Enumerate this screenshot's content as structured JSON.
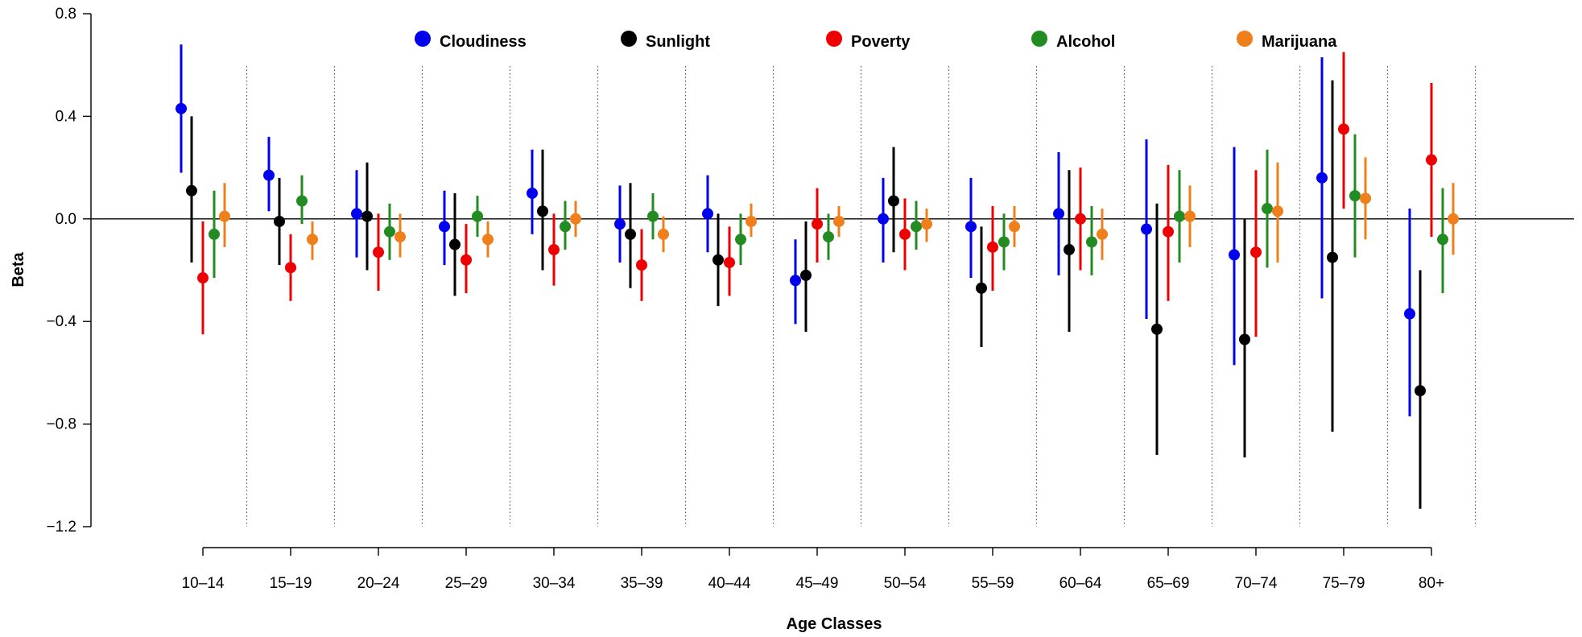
{
  "chart_data": {
    "type": "scatter",
    "subtype": "point-range (coefficient estimate with interval)",
    "title": "",
    "xlabel": "Age Classes",
    "ylabel": "Beta",
    "ylim": [
      -1.2,
      0.8
    ],
    "yticks": [
      "0.8",
      "0.4",
      "0.0",
      "−0.4",
      "−0.8",
      "−1.2"
    ],
    "ytick_values": [
      0.8,
      0.4,
      0.0,
      -0.4,
      -0.8,
      -1.2
    ],
    "reference_line": 0.0,
    "grid": false,
    "separators": "dotted vertical lines between age classes",
    "legend_position": "top",
    "categories": [
      "10–14",
      "15–19",
      "20–24",
      "25–29",
      "30–34",
      "35–39",
      "40–44",
      "45–49",
      "50–54",
      "55–59",
      "60–64",
      "65–69",
      "70–74",
      "75–79",
      "80+"
    ],
    "series": [
      {
        "name": "Cloudiness",
        "color": "#0000ee",
        "values": [
          0.43,
          0.17,
          0.02,
          -0.03,
          0.1,
          -0.02,
          0.02,
          -0.24,
          0.0,
          -0.03,
          0.02,
          -0.04,
          -0.14,
          0.16,
          -0.37
        ],
        "lower": [
          0.18,
          0.03,
          -0.15,
          -0.18,
          -0.06,
          -0.17,
          -0.13,
          -0.41,
          -0.17,
          -0.23,
          -0.22,
          -0.39,
          -0.57,
          -0.31,
          -0.77
        ],
        "upper": [
          0.68,
          0.32,
          0.19,
          0.11,
          0.27,
          0.13,
          0.17,
          -0.08,
          0.16,
          0.16,
          0.26,
          0.31,
          0.28,
          0.63,
          0.04
        ]
      },
      {
        "name": "Sunlight",
        "color": "#000000",
        "values": [
          0.11,
          -0.01,
          0.01,
          -0.1,
          0.03,
          -0.06,
          -0.16,
          -0.22,
          0.07,
          -0.27,
          -0.12,
          -0.43,
          -0.47,
          -0.15,
          -0.67
        ],
        "lower": [
          -0.17,
          -0.18,
          -0.2,
          -0.3,
          -0.2,
          -0.27,
          -0.34,
          -0.44,
          -0.13,
          -0.5,
          -0.44,
          -0.92,
          -0.93,
          -0.83,
          -1.13
        ],
        "upper": [
          0.4,
          0.16,
          0.22,
          0.1,
          0.27,
          0.14,
          0.02,
          -0.01,
          0.28,
          -0.03,
          0.19,
          0.06,
          0.0,
          0.54,
          -0.2
        ]
      },
      {
        "name": "Poverty",
        "color": "#ee0000",
        "values": [
          -0.23,
          -0.19,
          -0.13,
          -0.16,
          -0.12,
          -0.18,
          -0.17,
          -0.02,
          -0.06,
          -0.11,
          0.0,
          -0.05,
          -0.13,
          0.35,
          0.23
        ],
        "lower": [
          -0.45,
          -0.32,
          -0.28,
          -0.29,
          -0.26,
          -0.32,
          -0.3,
          -0.17,
          -0.2,
          -0.28,
          -0.2,
          -0.32,
          -0.46,
          0.04,
          -0.07
        ],
        "upper": [
          -0.01,
          -0.06,
          0.02,
          -0.02,
          0.02,
          -0.04,
          -0.03,
          0.12,
          0.08,
          0.05,
          0.2,
          0.21,
          0.19,
          0.65,
          0.53
        ]
      },
      {
        "name": "Alcohol",
        "color": "#228b22",
        "values": [
          -0.06,
          0.07,
          -0.05,
          0.01,
          -0.03,
          0.01,
          -0.08,
          -0.07,
          -0.03,
          -0.09,
          -0.09,
          0.01,
          0.04,
          0.09,
          -0.08
        ],
        "lower": [
          -0.23,
          -0.02,
          -0.16,
          -0.07,
          -0.12,
          -0.08,
          -0.18,
          -0.16,
          -0.12,
          -0.2,
          -0.22,
          -0.17,
          -0.19,
          -0.15,
          -0.29
        ],
        "upper": [
          0.11,
          0.17,
          0.06,
          0.09,
          0.07,
          0.1,
          0.02,
          0.02,
          0.07,
          0.02,
          0.05,
          0.19,
          0.27,
          0.33,
          0.12
        ]
      },
      {
        "name": "Marijuana",
        "color": "#ee7f1a",
        "values": [
          0.01,
          -0.08,
          -0.07,
          -0.08,
          0.0,
          -0.06,
          -0.01,
          -0.01,
          -0.02,
          -0.03,
          -0.06,
          0.01,
          0.03,
          0.08,
          0.0
        ],
        "lower": [
          -0.11,
          -0.16,
          -0.15,
          -0.15,
          -0.07,
          -0.13,
          -0.07,
          -0.07,
          -0.09,
          -0.11,
          -0.16,
          -0.11,
          -0.17,
          -0.08,
          -0.14
        ],
        "upper": [
          0.14,
          -0.01,
          0.02,
          -0.01,
          0.07,
          0.01,
          0.06,
          0.05,
          0.04,
          0.05,
          0.04,
          0.13,
          0.22,
          0.24,
          0.14
        ]
      }
    ]
  }
}
